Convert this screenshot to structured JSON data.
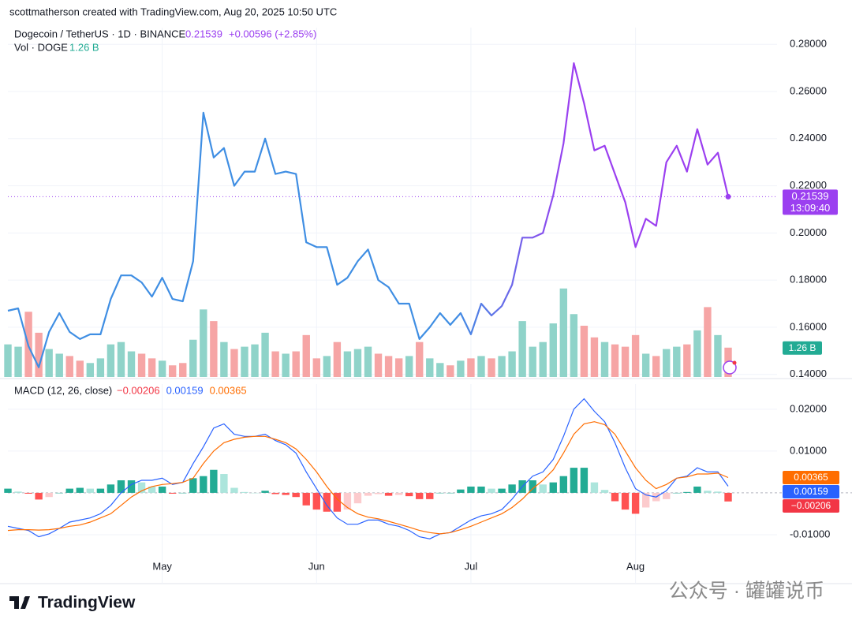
{
  "header": "scottmatherson created with TradingView.com, Aug 20, 2025 10:50 UTC",
  "footer": {
    "logo": "TradingView",
    "watermark": "公众号 · 罐罐说币"
  },
  "chart_data": [
    {
      "type": "line",
      "series": [
        {
          "name": "Dogecoin / TetherUS · 1D · BINANCE",
          "colors": [
            "#3f8ee3",
            "#9b3ff0"
          ],
          "last_label": "0.21539",
          "change_label": "+0.00596 (+2.85%)",
          "countdown": "13:09:40",
          "values": [
            0.167,
            0.168,
            0.152,
            0.143,
            0.158,
            0.166,
            0.158,
            0.155,
            0.157,
            0.157,
            0.172,
            0.182,
            0.182,
            0.179,
            0.173,
            0.181,
            0.172,
            0.171,
            0.188,
            0.251,
            0.232,
            0.236,
            0.22,
            0.226,
            0.226,
            0.24,
            0.225,
            0.226,
            0.225,
            0.196,
            0.194,
            0.194,
            0.178,
            0.181,
            0.188,
            0.193,
            0.18,
            0.177,
            0.17,
            0.17,
            0.155,
            0.16,
            0.166,
            0.161,
            0.166,
            0.157,
            0.17,
            0.165,
            0.169,
            0.178,
            0.198,
            0.198,
            0.2,
            0.216,
            0.238,
            0.272,
            0.255,
            0.235,
            0.237,
            0.225,
            0.213,
            0.194,
            0.206,
            0.203,
            0.23,
            0.237,
            0.226,
            0.244,
            0.229,
            0.234,
            0.21539
          ]
        }
      ],
      "ylim": [
        0.1389,
        0.2871
      ],
      "yticks": [
        {
          "value": 0.14,
          "label": "0.14000"
        },
        {
          "value": 0.16,
          "label": "0.16000"
        },
        {
          "value": 0.18,
          "label": "0.18000"
        },
        {
          "value": 0.2,
          "label": "0.20000"
        },
        {
          "value": 0.22,
          "label": "0.22000"
        },
        {
          "value": 0.24,
          "label": "0.24000"
        },
        {
          "value": 0.26,
          "label": "0.26000"
        },
        {
          "value": 0.28,
          "label": "0.28000"
        }
      ],
      "grid": true
    },
    {
      "type": "bar",
      "series": [
        {
          "name": "Vol · DOGE",
          "last_label": "1.26 B",
          "up_color": "#8fd3c9",
          "down_color": "#f6a5a5",
          "label_color": "#22ab94",
          "values": [
            1.4,
            1.3,
            2.8,
            1.9,
            1.2,
            1.0,
            0.9,
            0.7,
            0.6,
            0.8,
            1.4,
            1.5,
            1.1,
            1.0,
            0.8,
            0.7,
            0.5,
            0.6,
            1.6,
            2.9,
            2.4,
            1.5,
            1.2,
            1.3,
            1.4,
            1.9,
            1.1,
            1.0,
            1.1,
            1.8,
            0.8,
            0.9,
            1.5,
            1.1,
            1.2,
            1.3,
            1.0,
            0.9,
            0.8,
            0.9,
            1.5,
            0.8,
            0.6,
            0.5,
            0.7,
            0.8,
            0.9,
            0.8,
            0.9,
            1.1,
            2.4,
            1.3,
            1.5,
            2.3,
            3.8,
            2.7,
            2.2,
            1.7,
            1.5,
            1.4,
            1.3,
            1.8,
            1.0,
            0.9,
            1.2,
            1.3,
            1.4,
            2.0,
            3.0,
            1.8,
            1.26
          ]
        }
      ],
      "ylim": [
        0,
        15
      ]
    },
    {
      "type": "macd",
      "title": "MACD (12, 26, close)",
      "categories": [
        null,
        null,
        null,
        null,
        null,
        null,
        null,
        null,
        null,
        null,
        null,
        null,
        null,
        null,
        null,
        "May",
        null,
        null,
        null,
        null,
        null,
        null,
        null,
        null,
        null,
        null,
        null,
        null,
        null,
        null,
        "Jun",
        null,
        null,
        null,
        null,
        null,
        null,
        null,
        null,
        null,
        null,
        null,
        null,
        null,
        null,
        "Jul",
        null,
        null,
        null,
        null,
        null,
        null,
        null,
        null,
        null,
        null,
        null,
        null,
        null,
        null,
        null,
        "Aug",
        null,
        null,
        null,
        null,
        null,
        null,
        null,
        null,
        null
      ],
      "series": [
        {
          "kind": "histogram",
          "last_label": "−0.00206",
          "color": "#f23645",
          "colors": [
            "#22ab94",
            "#ace5dc",
            "#ff5252",
            "#fccbcd"
          ],
          "values": [
            0.001,
            0.0003,
            -0.0002,
            -0.0016,
            -0.001,
            0,
            0.001,
            0.0012,
            0.001,
            0.001,
            0.002,
            0.003,
            0.003,
            0.0025,
            0.0015,
            0.0015,
            -0.0002,
            0,
            0.0035,
            0.004,
            0.0055,
            0.0045,
            0.0012,
            0.0002,
            0,
            0.0005,
            -0.0003,
            -0.0005,
            -0.001,
            -0.003,
            -0.004,
            -0.0045,
            -0.0045,
            -0.004,
            -0.0025,
            -0.0007,
            -0.0003,
            -0.0007,
            -0.0005,
            -0.0008,
            -0.0015,
            -0.0015,
            0,
            0,
            0.0008,
            0.0015,
            0.0015,
            0.001,
            0.001,
            0.002,
            0.003,
            0.003,
            0.002,
            0.0025,
            0.004,
            0.006,
            0.006,
            0.0025,
            0.0007,
            -0.002,
            -0.004,
            -0.005,
            -0.0035,
            -0.002,
            -0.0015,
            0,
            0.0002,
            0.0015,
            0.0005,
            0.0003,
            -0.00206
          ]
        },
        {
          "kind": "line",
          "last_label": "0.00159",
          "color": "#2962ff",
          "values": [
            -0.008,
            -0.0085,
            -0.009,
            -0.0105,
            -0.0098,
            -0.0085,
            -0.007,
            -0.0065,
            -0.006,
            -0.005,
            -0.003,
            0,
            0.002,
            0.003,
            0.003,
            0.0035,
            0.002,
            0.0025,
            0.007,
            0.011,
            0.0155,
            0.0165,
            0.014,
            0.0135,
            0.0135,
            0.014,
            0.0125,
            0.0115,
            0.0095,
            0.005,
            0.001,
            -0.003,
            -0.006,
            -0.0075,
            -0.0075,
            -0.0065,
            -0.0065,
            -0.0075,
            -0.008,
            -0.009,
            -0.0105,
            -0.011,
            -0.0098,
            -0.0095,
            -0.008,
            -0.0065,
            -0.0055,
            -0.005,
            -0.004,
            -0.0015,
            0.0015,
            0.004,
            0.005,
            0.008,
            0.0135,
            0.02,
            0.0225,
            0.0195,
            0.017,
            0.012,
            0.006,
            0.001,
            -0.0005,
            -0.001,
            0.0005,
            0.0035,
            0.004,
            0.006,
            0.005,
            0.005,
            0.00159
          ]
        },
        {
          "kind": "line",
          "last_label": "0.00365",
          "color": "#ff6d00",
          "values": [
            -0.009,
            -0.0088,
            -0.0088,
            -0.0089,
            -0.0088,
            -0.0085,
            -0.008,
            -0.0077,
            -0.007,
            -0.006,
            -0.005,
            -0.003,
            -0.001,
            0.0005,
            0.0015,
            0.002,
            0.0022,
            0.0025,
            0.0035,
            0.007,
            0.01,
            0.012,
            0.0128,
            0.0133,
            0.0135,
            0.0135,
            0.0128,
            0.012,
            0.0105,
            0.008,
            0.005,
            0.0015,
            -0.0015,
            -0.0035,
            -0.005,
            -0.0058,
            -0.0062,
            -0.0068,
            -0.0075,
            -0.0082,
            -0.009,
            -0.0095,
            -0.0098,
            -0.0095,
            -0.0088,
            -0.008,
            -0.007,
            -0.006,
            -0.005,
            -0.0035,
            -0.0015,
            0.001,
            0.003,
            0.0055,
            0.0095,
            0.014,
            0.0165,
            0.017,
            0.0163,
            0.014,
            0.01,
            0.006,
            0.003,
            0.001,
            0.002,
            0.0035,
            0.0038,
            0.0045,
            0.0045,
            0.0047,
            0.00365
          ]
        }
      ],
      "ylim": [
        -0.0217,
        0.026
      ],
      "yticks": [
        {
          "value": -0.01,
          "label": "-0.01000"
        },
        {
          "value": 0.01,
          "label": "0.01000"
        },
        {
          "value": 0.02,
          "label": "0.02000"
        }
      ],
      "grid": true
    }
  ]
}
